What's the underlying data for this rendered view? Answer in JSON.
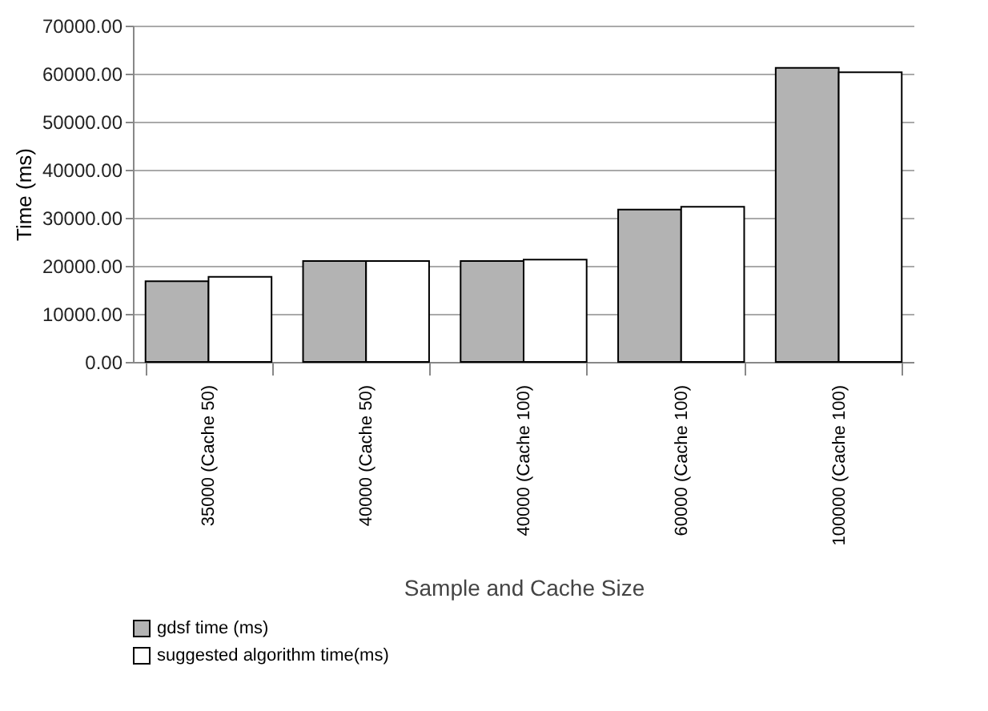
{
  "chart_data": {
    "type": "bar",
    "xlabel": "Sample and Cache Size",
    "ylabel": "Time (ms)",
    "categories": [
      "35000 (Cache 50)",
      "40000 (Cache 50)",
      "40000 (Cache 100)",
      "60000 (Cache 100)",
      "100000 (Cache 100)"
    ],
    "series": [
      {
        "name": "gdsf time (ms)",
        "color": "#b3b3b3",
        "values": [
          16800,
          21000,
          21000,
          31700,
          61200
        ]
      },
      {
        "name": "suggested algorithm time(ms)",
        "color": "#ffffff",
        "values": [
          17700,
          21000,
          21300,
          32300,
          60300
        ]
      }
    ],
    "ylim": [
      0,
      70000
    ],
    "yticks": [
      {
        "value": 0,
        "label": "0.00"
      },
      {
        "value": 10000,
        "label": "10000.00"
      },
      {
        "value": 20000,
        "label": "20000.00"
      },
      {
        "value": 30000,
        "label": "30000.00"
      },
      {
        "value": 40000,
        "label": "40000.00"
      },
      {
        "value": 50000,
        "label": "50000.00"
      },
      {
        "value": 60000,
        "label": "60000.00"
      },
      {
        "value": 70000,
        "label": "70000.00"
      }
    ],
    "grid": "y",
    "legend": "bottom"
  }
}
